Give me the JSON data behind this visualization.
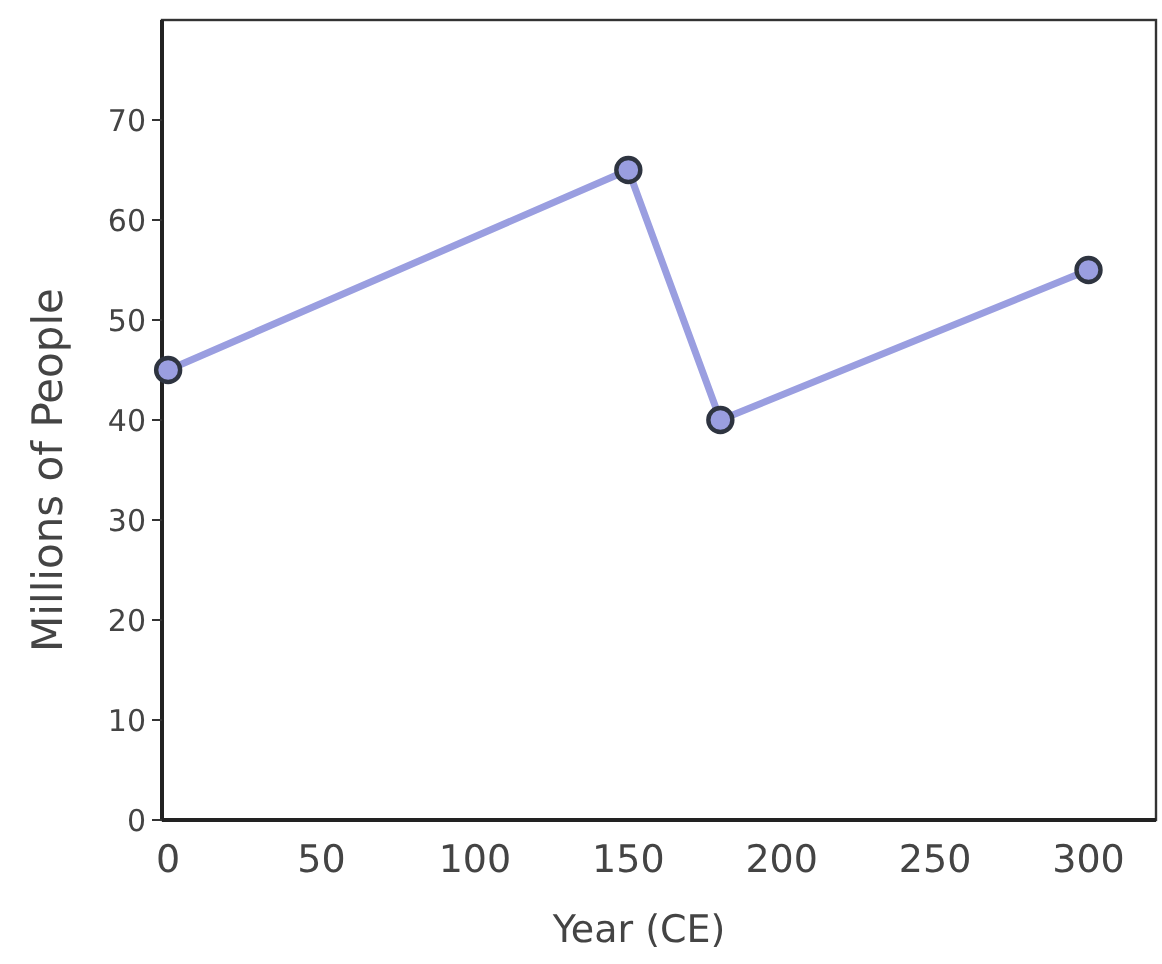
{
  "chart_data": {
    "type": "line",
    "xlabel": "Year (CE)",
    "ylabel": "Millions of People",
    "x": [
      0,
      150,
      180,
      300
    ],
    "series": [
      {
        "color": "#9a9ee0",
        "values": [
          45,
          65,
          40,
          55
        ]
      }
    ],
    "xlim": [
      -2,
      322
    ],
    "ylim": [
      0,
      80
    ],
    "xticks": [
      0,
      50,
      100,
      150,
      200,
      250,
      300
    ],
    "yticks": [
      0,
      10,
      20,
      30,
      40,
      50,
      60,
      70
    ],
    "marker": "circle"
  }
}
